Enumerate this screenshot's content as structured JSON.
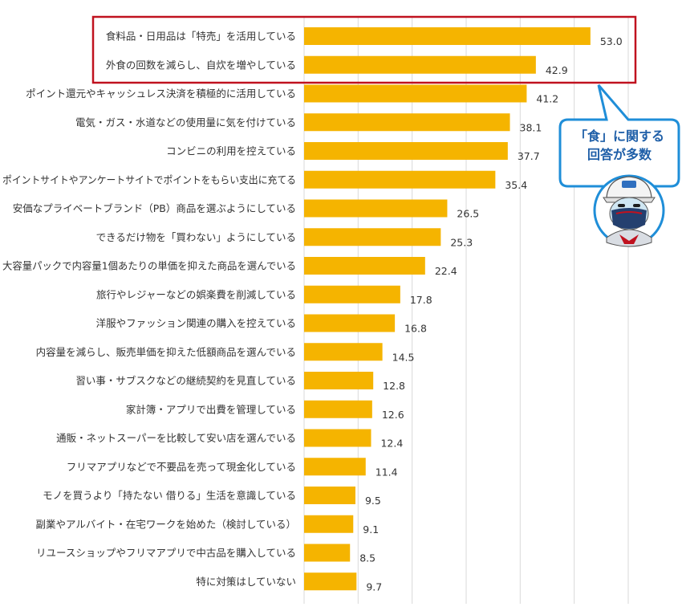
{
  "chart_data": {
    "type": "bar",
    "orientation": "horizontal",
    "categories": [
      "食料品・日用品は「特売」を活用している",
      "外食の回数を減らし、自炊を増やしている",
      "ポイント還元やキャッシュレス決済を積極的に活用している",
      "電気・ガス・水道などの使用量に気を付けている",
      "コンビニの利用を控えている",
      "ポイントサイトやアンケートサイトでポイントをもらい支出に充てる",
      "安価なプライベートブランド（PB）商品を選ぶようにしている",
      "できるだけ物を「買わない」ようにしている",
      "大容量パックで内容量1個あたりの単価を抑えた商品を選んでいる",
      "旅行やレジャーなどの娯楽費を削減している",
      "洋服やファッション関連の購入を控えている",
      "内容量を減らし、販売単価を抑えた低額商品を選んでいる",
      "習い事・サブスクなどの継続契約を見直している",
      "家計簿・アプリで出費を管理している",
      "通販・ネットスーパーを比較して安い店を選んでいる",
      "フリマアプリなどで不要品を売って現金化している",
      "モノを買うより「持たない 借りる」生活を意識している",
      "副業やアルバイト・在宅ワークを始めた（検討している）",
      "リユースショップやフリマアプリで中古品を購入している",
      "特に対策はしていない"
    ],
    "values": [
      53.0,
      42.9,
      41.2,
      38.1,
      37.7,
      35.4,
      26.5,
      25.3,
      22.4,
      17.8,
      16.8,
      14.5,
      12.8,
      12.6,
      12.4,
      11.4,
      9.5,
      9.1,
      8.5,
      9.7
    ],
    "value_labels": [
      "53.0",
      "42.9",
      "41.2",
      "38.1",
      "37.7",
      "35.4",
      "26.5",
      "25.3",
      "22.4",
      "17.8",
      "16.8",
      "14.5",
      "12.8",
      "12.6",
      "12.4",
      "11.4",
      "9.5",
      "9.1",
      "8.5",
      "9.7"
    ],
    "xlim": [
      0,
      60
    ],
    "grid": true,
    "highlighted": [
      0,
      1
    ],
    "colors": {
      "bar": "#f5b400",
      "grid": "#d9d9d9",
      "highlight_box": "#c0121f",
      "callout_border": "#1f8ed8",
      "callout_fill": "#ffffff",
      "callout_text": "#1f5fa8"
    }
  },
  "callout": {
    "line1": "「食」に関する",
    "line2": "回答が多数",
    "icon": "mascot-avatar-icon"
  }
}
